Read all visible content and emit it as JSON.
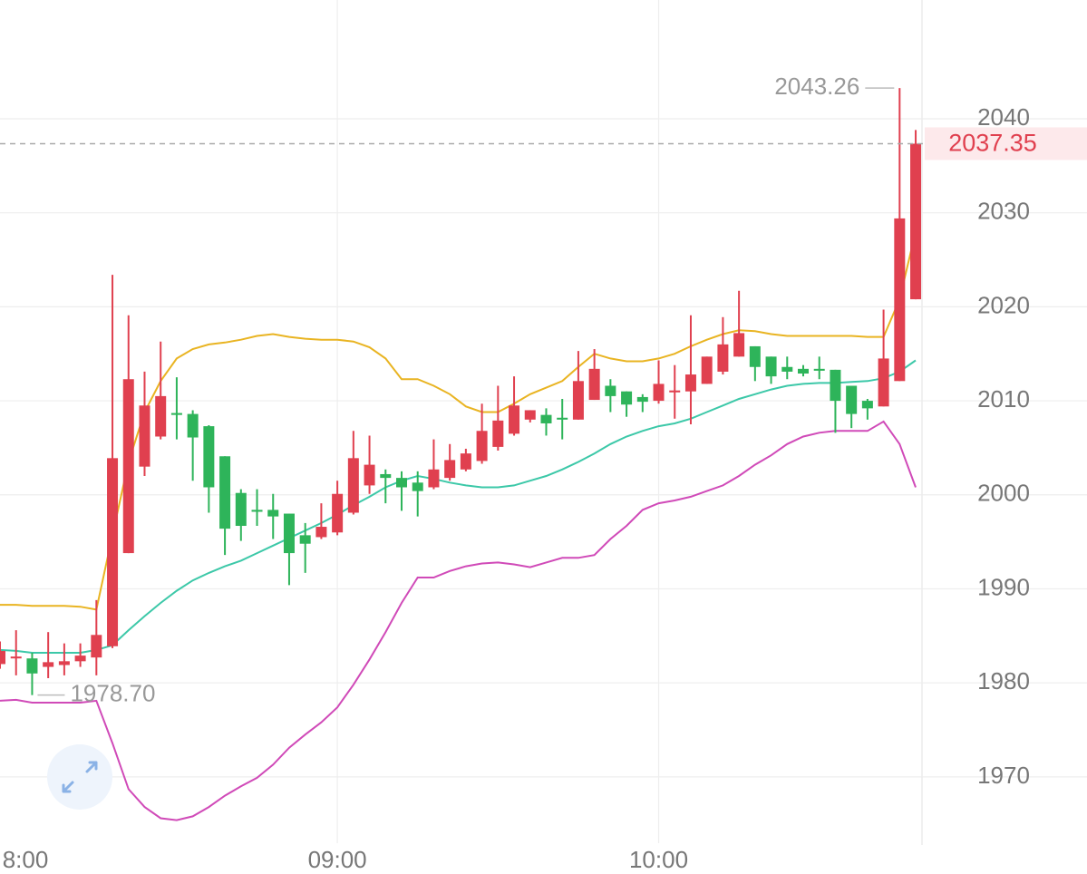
{
  "chart_data": {
    "type": "candlestick",
    "categories": [
      null,
      "8:00",
      null,
      null,
      null,
      null,
      null,
      null,
      null,
      null,
      null,
      null,
      null,
      null,
      null,
      null,
      null,
      null,
      null,
      null,
      null,
      "09:00",
      null,
      null,
      null,
      null,
      null,
      null,
      null,
      null,
      null,
      null,
      null,
      null,
      null,
      null,
      null,
      null,
      null,
      null,
      null,
      "10:00",
      null,
      null,
      null,
      null,
      null,
      null,
      null,
      null,
      null,
      null,
      null,
      null,
      null,
      null,
      null,
      null
    ],
    "open": [
      1982,
      1982.6,
      1982.6,
      1981.7,
      1981.9,
      1982.3,
      1982.7,
      1983.9,
      1993.8,
      2003,
      2006.2,
      2008.7,
      2008.6,
      2007.3,
      2004.1,
      2000.2,
      1998.4,
      1998.4,
      1998,
      1995.7,
      1995.5,
      1996,
      1998.1,
      2001,
      2002.2,
      2001.8,
      2001.3,
      2000.8,
      2001.8,
      2002.7,
      2003.6,
      2005.1,
      2006.5,
      2008,
      2008.5,
      2008.2,
      2008,
      2010.1,
      2011.6,
      2011,
      2010.4,
      2010,
      2010.9,
      2011,
      2011.8,
      2013.1,
      2014.7,
      2015.8,
      2014.7,
      2013.6,
      2013.4,
      2013.4,
      2013.3,
      2011.6,
      2010,
      2009.4,
      2012.1,
      2020.8
    ],
    "high": [
      1984.4,
      1985.6,
      1983.2,
      1985.4,
      1984.2,
      1984.2,
      1988.8,
      2023.4,
      2019.1,
      2013.1,
      2016.3,
      2012.5,
      2009,
      2007.4,
      2004.1,
      2000.6,
      2000.6,
      2000.1,
      1998,
      1997,
      1999.1,
      2001.5,
      2006.8,
      2006.3,
      2002.7,
      2002.5,
      2002.5,
      2005.9,
      2005.4,
      2004.9,
      2009.7,
      2011.6,
      2012.6,
      2009,
      2009.2,
      2010.2,
      2015.3,
      2015.5,
      2012.3,
      2011,
      2010.7,
      2014.3,
      2013.8,
      2019.1,
      2014.7,
      2018.9,
      2021.7,
      2015.8,
      2014.7,
      2014.7,
      2013.8,
      2014.7,
      2013.3,
      2011.6,
      2010.2,
      2019.7,
      2043.26,
      2038.8
    ],
    "low": [
      1981.5,
      1980.8,
      1978.7,
      1980.5,
      1980.8,
      1981.7,
      1980.8,
      1983.7,
      1993.8,
      2002,
      2005.9,
      2005.9,
      2001.5,
      1998.1,
      1993.6,
      1995.1,
      1996.7,
      1995.3,
      1990.4,
      1991.7,
      1995.3,
      1995.7,
      1997.9,
      2000.1,
      1999.1,
      1998.3,
      1997.7,
      2000.6,
      2001.5,
      2002.5,
      2003.3,
      2004.7,
      2006.3,
      2007.7,
      2006.3,
      2005.9,
      2008,
      2010.1,
      2008.8,
      2008.3,
      2008.8,
      2009.7,
      2008.1,
      2007.5,
      2011.8,
      2012.8,
      2014.7,
      2012.1,
      2011.8,
      2012.3,
      2012.6,
      2012.3,
      2006.6,
      2007.1,
      2008,
      2009.4,
      2012.1,
      2020.8
    ],
    "close": [
      1983.4,
      1982.8,
      1981,
      1982.2,
      1982.3,
      1982.9,
      1985.1,
      2003.9,
      2012.3,
      2009.5,
      2010.5,
      2008.5,
      2006.1,
      2000.8,
      1996.4,
      1996.7,
      1998.2,
      1997.7,
      1993.8,
      1994.8,
      1996.6,
      2000.1,
      2003.9,
      2003.2,
      2001.8,
      2000.8,
      2000.4,
      2002.7,
      2003.7,
      2004.4,
      2006.8,
      2007.9,
      2009.5,
      2009,
      2007.6,
      2008,
      2012.1,
      2013.4,
      2010.5,
      2009.6,
      2009.9,
      2011.8,
      2011.1,
      2012.8,
      2014.7,
      2016,
      2017.2,
      2013.6,
      2012.6,
      2013.1,
      2012.9,
      2013.2,
      2010,
      2008.6,
      2009.2,
      2014.5,
      2029.4,
      2037.35
    ],
    "up_color": "#e0404f",
    "down_color": "#2eb45a",
    "lines": [
      {
        "color": "#e9b422",
        "values": [
          1988.3,
          1988.3,
          1988.2,
          1988.2,
          1988.2,
          1988.1,
          1987.8,
          1995.7,
          2003.5,
          2008.8,
          2012.1,
          2014.5,
          2015.5,
          2016,
          2016.2,
          2016.5,
          2016.9,
          2017.1,
          2016.8,
          2016.6,
          2016.5,
          2016.5,
          2016.3,
          2015.7,
          2014.5,
          2012.3,
          2012.3,
          2011.6,
          2010.7,
          2009.4,
          2008.8,
          2008.8,
          2009.7,
          2010.7,
          2011.4,
          2012.1,
          2013.6,
          2015,
          2014.5,
          2014.2,
          2014.2,
          2014.5,
          2015,
          2015.8,
          2016.5,
          2017.1,
          2017.5,
          2017.4,
          2017.1,
          2016.9,
          2016.9,
          2016.9,
          2016.9,
          2016.9,
          2016.8,
          2016.8,
          2020.8,
          2028
        ]
      },
      {
        "color": "#3cc8a8",
        "values": [
          1983.5,
          1983.4,
          1983.2,
          1983.2,
          1983.2,
          1983.2,
          1983.5,
          1984,
          1985.6,
          1987.1,
          1988.5,
          1989.8,
          1990.9,
          1991.7,
          1992.4,
          1993,
          1993.8,
          1994.6,
          1995.4,
          1996.2,
          1997,
          1997.9,
          1998.9,
          1999.8,
          2000.8,
          2001.5,
          2002,
          2001.7,
          2001.3,
          2001,
          2000.8,
          2000.8,
          2001,
          2001.5,
          2002,
          2002.7,
          2003.5,
          2004.4,
          2005.4,
          2006.2,
          2006.8,
          2007.3,
          2007.6,
          2008.1,
          2008.8,
          2009.5,
          2010.2,
          2010.7,
          2011.2,
          2011.6,
          2011.8,
          2011.9,
          2011.9,
          2012,
          2012.1,
          2012.4,
          2013.1,
          2014.3
        ]
      },
      {
        "color": "#d04ab8",
        "values": [
          1978.1,
          1978.2,
          1977.9,
          1977.9,
          1977.9,
          1977.9,
          1978.1,
          1973.6,
          1968.7,
          1966.8,
          1965.6,
          1965.4,
          1965.8,
          1966.8,
          1968,
          1969,
          1969.9,
          1971.3,
          1973.1,
          1974.5,
          1975.8,
          1977.4,
          1979.8,
          1982.5,
          1985.4,
          1988.5,
          1991.2,
          1991.2,
          1991.9,
          1992.4,
          1992.7,
          1992.8,
          1992.6,
          1992.3,
          1992.8,
          1993.3,
          1993.3,
          1993.6,
          1995.3,
          1996.7,
          1998.4,
          1999.1,
          1999.4,
          1999.8,
          2000.4,
          2001,
          2002,
          2003.2,
          2004.2,
          2005.4,
          2006.2,
          2006.6,
          2006.8,
          2006.8,
          2006.8,
          2007.8,
          2005.4,
          2000.8
        ]
      }
    ],
    "min_label": {
      "value": 1978.7,
      "label": "1978.70"
    },
    "ylim": [
      1962.95,
      2052.63
    ],
    "yticks": [
      1970,
      1980,
      1990,
      2000,
      2010,
      2020,
      2030,
      2040
    ],
    "grid": true
  }
}
